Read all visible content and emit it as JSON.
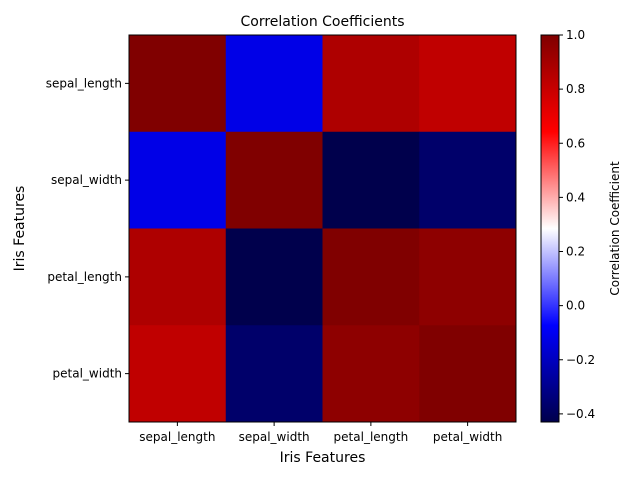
{
  "chart_data": {
    "type": "heatmap",
    "title": "Correlation Coefficients",
    "xlabel": "Iris Features",
    "ylabel": "Iris Features",
    "x_categories": [
      "sepal_length",
      "sepal_width",
      "petal_length",
      "petal_width"
    ],
    "y_categories": [
      "sepal_length",
      "sepal_width",
      "petal_length",
      "petal_width"
    ],
    "values": [
      [
        1.0,
        -0.12,
        0.87,
        0.82
      ],
      [
        -0.12,
        1.0,
        -0.43,
        -0.37
      ],
      [
        0.87,
        -0.43,
        1.0,
        0.96
      ],
      [
        0.82,
        -0.37,
        0.96,
        1.0
      ]
    ],
    "colormap": "seismic",
    "vmin": -0.43,
    "vmax": 1.0,
    "colorbar": {
      "label": "Correlation Coefficient",
      "ticks": [
        -0.4,
        -0.2,
        0.0,
        0.2,
        0.4,
        0.6,
        0.8,
        1.0
      ],
      "tick_labels": [
        "−0.4",
        "−0.2",
        "0.0",
        "0.2",
        "0.4",
        "0.6",
        "0.8",
        "1.0"
      ]
    },
    "grid": false,
    "legend": "colorbar-right"
  }
}
